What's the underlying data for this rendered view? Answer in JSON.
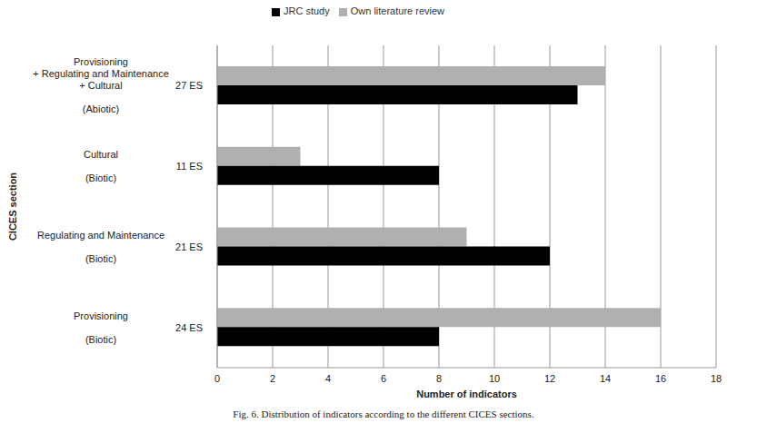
{
  "chart_data": {
    "type": "bar",
    "orientation": "horizontal",
    "categories": [
      "Provisioning + Regulating and Maintenance + Cultural (Abiotic)",
      "Cultural (Biotic)",
      "Regulating and Maintenance (Biotic)",
      "Provisioning (Biotic)"
    ],
    "category_annotations": [
      "27 ES",
      "11 ES",
      "21 ES",
      "24 ES"
    ],
    "series": [
      {
        "name": "Own literature review",
        "color": "#b0b0b0",
        "values": [
          14,
          3,
          9,
          16
        ]
      },
      {
        "name": "JRC study",
        "color": "#000000",
        "values": [
          13,
          8,
          12,
          8
        ]
      }
    ],
    "xlim": [
      0,
      18
    ],
    "xticks": [
      0,
      2,
      4,
      6,
      8,
      10,
      12,
      14,
      16,
      18
    ],
    "grid": true,
    "legend": "top",
    "xlabel": "Number of indicators",
    "ylabel": "CICES section",
    "caption": "Fig. 6. Distribution of indicators according to the different CICES sections."
  }
}
